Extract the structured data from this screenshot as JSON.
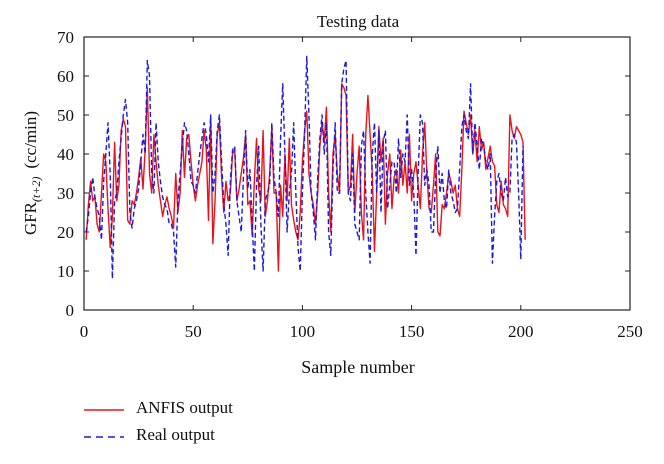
{
  "chart_data": {
    "type": "line",
    "title": "Testing data",
    "xlabel": "Sample number",
    "ylabel_main": "GFR",
    "ylabel_sub": "(t+2)",
    "ylabel_unit": "(cc/min)",
    "xlim": [
      0,
      250
    ],
    "ylim": [
      0,
      70
    ],
    "x_ticks": [
      "0",
      "50",
      "100",
      "150",
      "200",
      "250"
    ],
    "y_ticks": [
      "0",
      "10",
      "20",
      "30",
      "40",
      "50",
      "60",
      "70"
    ],
    "grid": false,
    "legend_position": "bottom-left, below plot",
    "series": [
      {
        "name": "ANFIS output",
        "color": "#e8141c",
        "style": "solid",
        "values": [
          18,
          27,
          33,
          28,
          29,
          22,
          20,
          30,
          40,
          38,
          26,
          16,
          24,
          43,
          28,
          32,
          46,
          49,
          47,
          23,
          22,
          28,
          27,
          30,
          34,
          39,
          31,
          41,
          57,
          35,
          30,
          45,
          38,
          32,
          28,
          24,
          27,
          29,
          26,
          24,
          21,
          35,
          25,
          30,
          46,
          34,
          44,
          45,
          38,
          32,
          28,
          32,
          35,
          38,
          46,
          41,
          23,
          49,
          17,
          28,
          45,
          48,
          34,
          25,
          33,
          28,
          30,
          40,
          41,
          28,
          31,
          35,
          39,
          45,
          27,
          28,
          19,
          33,
          44,
          31,
          28,
          46,
          24,
          28,
          35,
          47,
          30,
          30,
          10,
          32,
          24,
          40,
          28,
          44,
          27,
          23,
          20,
          18,
          25,
          38,
          46,
          51,
          35,
          30,
          27,
          22,
          30,
          42,
          48,
          43,
          52,
          30,
          20,
          40,
          45,
          35,
          30,
          58,
          57,
          55,
          30,
          32,
          45,
          25,
          35,
          42,
          25,
          18,
          45,
          55,
          45,
          35,
          15,
          30,
          47,
          38,
          44,
          22,
          35,
          40,
          26,
          34,
          36,
          30,
          41,
          32,
          38,
          30,
          45,
          28,
          35,
          38,
          32,
          26,
          40,
          48,
          35,
          26,
          25,
          32,
          40,
          20,
          19,
          27,
          26,
          30,
          35,
          33,
          30,
          32,
          26,
          24,
          36,
          51,
          48,
          45,
          50,
          40,
          46,
          38,
          47,
          41,
          43,
          36,
          39,
          42,
          38,
          37,
          27,
          25,
          33,
          27,
          26,
          24,
          50,
          46,
          44,
          47,
          46,
          45,
          43,
          18
        ]
      },
      {
        "name": "Real output",
        "color": "#1a1ad8",
        "style": "dashed",
        "values": [
          20,
          24,
          30,
          34,
          29,
          26,
          24,
          18,
          33,
          40,
          48,
          35,
          8,
          28,
          30,
          38,
          44,
          50,
          54,
          48,
          25,
          21,
          26,
          28,
          31,
          38,
          45,
          40,
          64,
          60,
          35,
          30,
          48,
          38,
          33,
          29,
          27,
          26,
          22,
          22,
          20,
          11,
          28,
          35,
          42,
          48,
          46,
          40,
          33,
          32,
          30,
          35,
          40,
          44,
          48,
          45,
          38,
          50,
          30,
          35,
          46,
          50,
          38,
          27,
          22,
          14,
          33,
          41,
          42,
          28,
          24,
          20,
          34,
          46,
          31,
          36,
          22,
          10,
          32,
          42,
          22,
          10,
          28,
          30,
          32,
          48,
          34,
          30,
          24,
          44,
          58,
          40,
          20,
          30,
          35,
          48,
          30,
          16,
          10,
          30,
          45,
          65,
          50,
          30,
          25,
          18,
          34,
          44,
          50,
          40,
          48,
          20,
          14,
          36,
          48,
          30,
          30,
          58,
          62,
          64,
          30,
          28,
          40,
          22,
          20,
          18,
          42,
          46,
          30,
          20,
          12,
          40,
          48,
          30,
          46,
          25,
          43,
          46,
          26,
          32,
          38,
          38,
          30,
          44,
          34,
          40,
          38,
          50,
          32,
          36,
          30,
          14,
          35,
          50,
          48,
          32,
          36,
          32,
          20,
          20,
          34,
          42,
          30,
          35,
          28,
          26,
          36,
          30,
          28,
          25,
          26,
          36,
          47,
          50,
          46,
          44,
          58,
          40,
          48,
          42,
          36,
          44,
          42,
          38,
          36,
          40,
          12,
          24,
          33,
          35,
          30,
          28,
          34,
          29,
          30,
          44,
          45,
          43,
          30,
          13,
          42
        ]
      }
    ]
  }
}
